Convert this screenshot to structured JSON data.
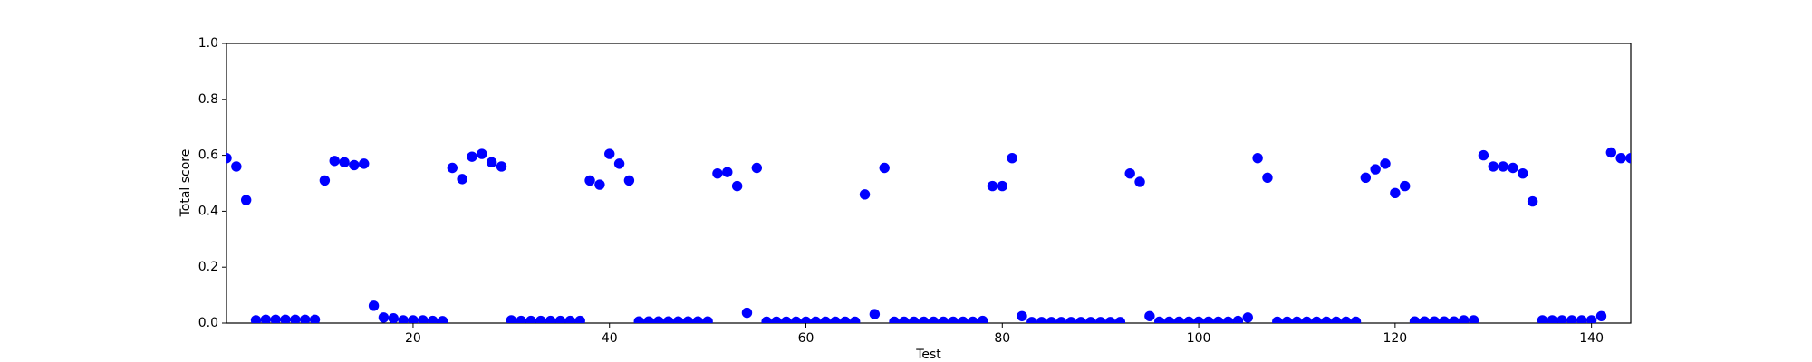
{
  "chart_data": {
    "type": "scatter",
    "x_label": "Test",
    "y_label": "Total score",
    "x": [
      1,
      2,
      3,
      4,
      5,
      6,
      7,
      8,
      9,
      10,
      11,
      12,
      13,
      14,
      15,
      16,
      17,
      18,
      19,
      20,
      21,
      22,
      23,
      24,
      25,
      26,
      27,
      28,
      29,
      30,
      31,
      32,
      33,
      34,
      35,
      36,
      37,
      38,
      39,
      40,
      41,
      42,
      43,
      44,
      45,
      46,
      47,
      48,
      49,
      50,
      51,
      52,
      53,
      54,
      55,
      56,
      57,
      58,
      59,
      60,
      61,
      62,
      63,
      64,
      65,
      66,
      67,
      68,
      69,
      70,
      71,
      72,
      73,
      74,
      75,
      76,
      77,
      78,
      79,
      80,
      81,
      82,
      83,
      84,
      85,
      86,
      87,
      88,
      89,
      90,
      91,
      92,
      93,
      94,
      95,
      96,
      97,
      98,
      99,
      100,
      101,
      102,
      103,
      104,
      105,
      106,
      107,
      108,
      109,
      110,
      111,
      112,
      113,
      114,
      115,
      116,
      117,
      118,
      119,
      120,
      121,
      122,
      123,
      124,
      125,
      126,
      127,
      128,
      129,
      130,
      131,
      132,
      133,
      134,
      135,
      136,
      137,
      138,
      139,
      140,
      141,
      142,
      143,
      144
    ],
    "values": [
      0.59,
      0.56,
      0.44,
      0.01,
      0.012,
      0.012,
      0.012,
      0.012,
      0.012,
      0.012,
      0.51,
      0.58,
      0.575,
      0.565,
      0.57,
      0.062,
      0.02,
      0.017,
      0.01,
      0.01,
      0.01,
      0.008,
      0.007,
      0.555,
      0.515,
      0.595,
      0.605,
      0.575,
      0.56,
      0.01,
      0.008,
      0.008,
      0.008,
      0.008,
      0.008,
      0.008,
      0.008,
      0.51,
      0.495,
      0.605,
      0.57,
      0.51,
      0.006,
      0.006,
      0.006,
      0.006,
      0.006,
      0.006,
      0.006,
      0.006,
      0.535,
      0.54,
      0.49,
      0.037,
      0.555,
      0.005,
      0.005,
      0.005,
      0.005,
      0.005,
      0.005,
      0.005,
      0.005,
      0.005,
      0.005,
      0.46,
      0.032,
      0.555,
      0.005,
      0.005,
      0.005,
      0.005,
      0.005,
      0.005,
      0.005,
      0.005,
      0.005,
      0.008,
      0.49,
      0.49,
      0.59,
      0.025,
      0.004,
      0.004,
      0.004,
      0.004,
      0.004,
      0.004,
      0.004,
      0.004,
      0.004,
      0.004,
      0.535,
      0.505,
      0.025,
      0.005,
      0.005,
      0.005,
      0.005,
      0.005,
      0.005,
      0.005,
      0.005,
      0.008,
      0.02,
      0.59,
      0.52,
      0.005,
      0.005,
      0.005,
      0.005,
      0.005,
      0.005,
      0.005,
      0.005,
      0.005,
      0.52,
      0.55,
      0.57,
      0.465,
      0.49,
      0.006,
      0.006,
      0.006,
      0.006,
      0.006,
      0.01,
      0.01,
      0.6,
      0.56,
      0.56,
      0.555,
      0.535,
      0.435,
      0.01,
      0.01,
      0.01,
      0.01,
      0.01,
      0.01,
      0.025,
      0.61,
      0.59,
      0.59
    ],
    "color": "#0000ff",
    "xlim": [
      1,
      144
    ],
    "xticks": [
      20,
      40,
      60,
      80,
      100,
      120,
      140
    ],
    "ylim": [
      0,
      1
    ],
    "yticks": [
      {
        "value": 0,
        "label": "0.0"
      },
      0.2,
      0.4,
      0.6,
      0.8,
      {
        "value": 1,
        "label": "1.0"
      }
    ]
  }
}
